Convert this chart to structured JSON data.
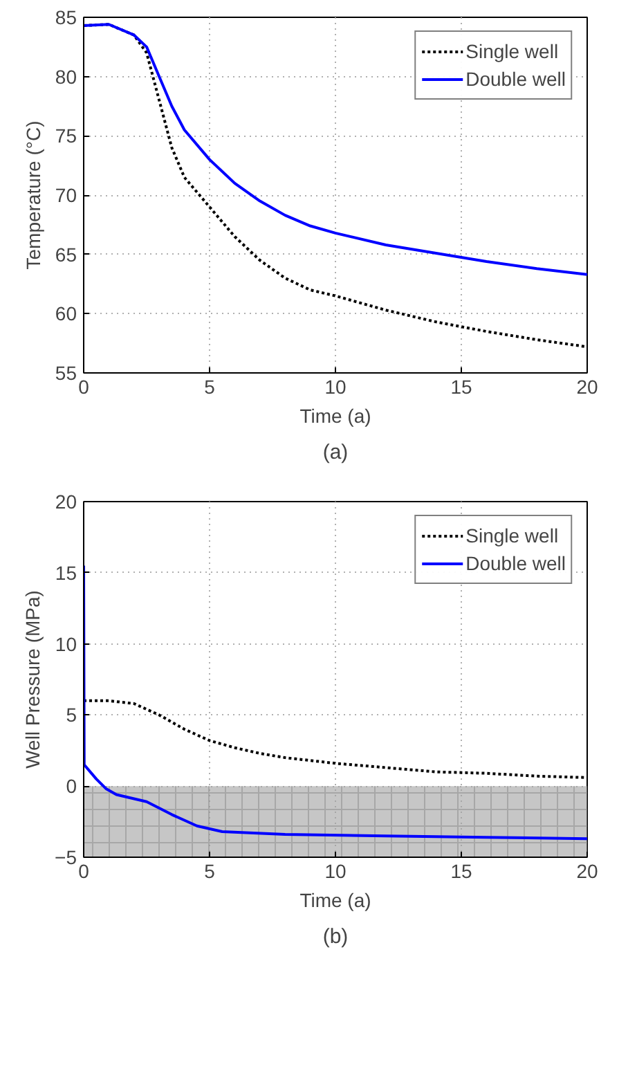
{
  "chart_data": [
    {
      "type": "line",
      "xlabel": "Time (a)",
      "ylabel": "Temperature (°C)",
      "xlim": [
        0,
        20
      ],
      "ylim": [
        55,
        85
      ],
      "xticks": [
        0,
        5,
        10,
        15,
        20
      ],
      "yticks": [
        55,
        60,
        65,
        70,
        75,
        80,
        85
      ],
      "grid": true,
      "legend": "top right",
      "annotations": [
        "(a)"
      ],
      "series": [
        {
          "name": "Single well",
          "color": "#000000",
          "line_style": "dashed",
          "x": [
            0,
            1,
            2,
            2.5,
            3,
            3.5,
            4,
            5,
            6,
            7,
            8,
            9,
            10,
            12,
            14,
            16,
            18,
            20
          ],
          "values": [
            84.3,
            84.4,
            83.5,
            82,
            78,
            74,
            71.5,
            69,
            66.5,
            64.5,
            63,
            62,
            61.5,
            60.3,
            59.3,
            58.5,
            57.8,
            57.2
          ]
        },
        {
          "name": "Double well",
          "color": "#0000ff",
          "line_style": "solid",
          "x": [
            0,
            1,
            2,
            2.5,
            3,
            3.5,
            4,
            5,
            6,
            7,
            8,
            9,
            10,
            12,
            14,
            16,
            18,
            20
          ],
          "values": [
            84.3,
            84.4,
            83.5,
            82.5,
            80,
            77.5,
            75.5,
            73,
            71,
            69.5,
            68.3,
            67.4,
            66.8,
            65.8,
            65.1,
            64.4,
            63.8,
            63.3
          ]
        }
      ]
    },
    {
      "type": "line",
      "xlabel": "Time (a)",
      "ylabel": "Well Pressure (MPa)",
      "xlim": [
        0,
        20
      ],
      "ylim": [
        -5,
        20
      ],
      "xticks": [
        0,
        5,
        10,
        15,
        20
      ],
      "yticks": [
        -5,
        0,
        5,
        10,
        15,
        20
      ],
      "grid": true,
      "legend": "top right",
      "annotations": [
        "(b)"
      ],
      "bands": [
        {
          "axis": "y",
          "from": -5,
          "to": 0,
          "label": null,
          "color": "#a0a0a0"
        }
      ],
      "series": [
        {
          "name": "Single well",
          "color": "#000000",
          "line_style": "dashed",
          "x": [
            0,
            1,
            2,
            3,
            4,
            5,
            6,
            7,
            8,
            10,
            12,
            14,
            16,
            18,
            20
          ],
          "values": [
            6,
            6,
            5.8,
            5,
            4,
            3.2,
            2.7,
            2.3,
            2,
            1.6,
            1.3,
            1.0,
            0.9,
            0.7,
            0.6
          ]
        },
        {
          "name": "Double well",
          "color": "#0000ff",
          "line_style": "solid",
          "x": [
            0,
            0.02,
            0.5,
            0.9,
            1.3,
            2.5,
            3.5,
            4.5,
            5.5,
            8,
            12,
            16,
            20
          ],
          "values": [
            15.5,
            1.5,
            0.5,
            -0.2,
            -0.6,
            -1.1,
            -2,
            -2.8,
            -3.2,
            -3.4,
            -3.5,
            -3.6,
            -3.7
          ]
        }
      ]
    }
  ]
}
